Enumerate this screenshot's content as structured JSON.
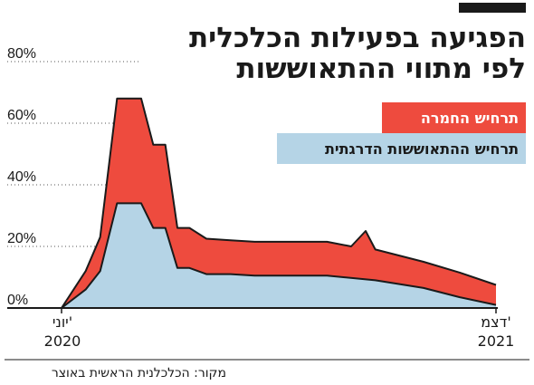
{
  "chart_data": {
    "type": "area",
    "title_line1": "הפגיעה בפעילות הכלכלית",
    "title_line2": "לפי מתווי ההתאוששות",
    "source": "מקור: הכלכלנית הראשית באוצר",
    "x_start_label": "יוני'",
    "x_start_year": "2020",
    "x_end_label": "דצמ'",
    "x_end_year": "2021",
    "y_ticks": [
      "0%",
      "20%",
      "40%",
      "60%",
      "80%"
    ],
    "y_tick_values": [
      0,
      20,
      40,
      60,
      80
    ],
    "ylim": [
      0,
      80
    ],
    "xlim": [
      0,
      18
    ],
    "grid": true,
    "series": [
      {
        "name": "תרחיש ההתאוששות הדרגתית",
        "color": "#b5d4e6",
        "x": [
          0,
          1,
          1.6,
          2.3,
          3.3,
          3.8,
          4.3,
          4.8,
          5.3,
          6,
          7,
          8,
          9.5,
          11,
          13,
          15,
          16.5,
          18
        ],
        "y": [
          0,
          6,
          12,
          34,
          34,
          26,
          26,
          13,
          13,
          11,
          11,
          10.5,
          10.5,
          10.5,
          9,
          6.5,
          3.5,
          1
        ]
      },
      {
        "name": "תרחיש החמרה",
        "color": "#ee4b3e",
        "x": [
          0,
          1,
          1.6,
          2.3,
          3.3,
          3.8,
          4.3,
          4.8,
          5.3,
          6,
          7,
          8,
          9.5,
          11,
          12,
          12.6,
          13,
          15,
          16.5,
          18
        ],
        "y": [
          0,
          12,
          23,
          68,
          68,
          53,
          53,
          26,
          26,
          22.5,
          22,
          21.5,
          21.5,
          21.5,
          20,
          25,
          19,
          15,
          11.5,
          7.5
        ]
      }
    ]
  }
}
